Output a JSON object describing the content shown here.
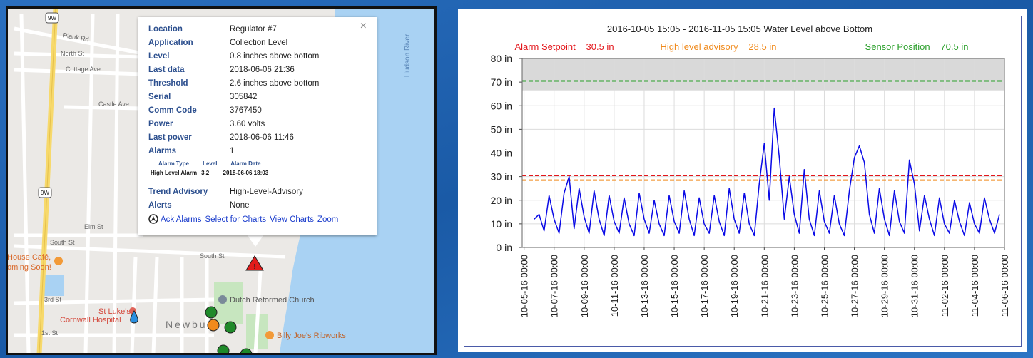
{
  "map": {
    "roads": [
      "Plank Rd",
      "North St",
      "Cottage Ave",
      "Castle Ave",
      "Elm St",
      "South St",
      "South St",
      "3rd St",
      "1st St"
    ],
    "shields": [
      "9W",
      "9W"
    ],
    "places": [
      "Dutch Reformed Church",
      "St Luke's",
      "Cornwall Hospital",
      "House Café,",
      "oming Soon!",
      "Billy Joe's Ribworks",
      "Hudson River",
      "Newbu"
    ]
  },
  "popup": {
    "close": "×",
    "fields": [
      {
        "label": "Location",
        "value": "Regulator #7"
      },
      {
        "label": "Application",
        "value": "Collection Level"
      },
      {
        "label": "Level",
        "value": "0.8 inches above bottom"
      },
      {
        "label": "Last data",
        "value": "2018-06-06 21:36"
      },
      {
        "label": "Threshold",
        "value": "2.6 inches above bottom"
      },
      {
        "label": "Serial",
        "value": "305842"
      },
      {
        "label": "Comm Code",
        "value": "3767450"
      },
      {
        "label": "Power",
        "value": "3.60 volts"
      },
      {
        "label": "Last power",
        "value": "2018-06-06 11:46"
      },
      {
        "label": "Alarms",
        "value": "1"
      }
    ],
    "alarm_table": {
      "headers": [
        "Alarm Type",
        "Level",
        "Alarm Date"
      ],
      "rows": [
        [
          "High Level Alarm",
          "3.2",
          "2018-06-06 18:03"
        ]
      ]
    },
    "more_fields": [
      {
        "label": "Trend Advisory",
        "value": "High-Level-Advisory"
      },
      {
        "label": "Alerts",
        "value": "None"
      }
    ],
    "links": [
      "Ack Alarms",
      "Select for Charts",
      "View Charts",
      "Zoom"
    ]
  },
  "chart_data": {
    "type": "line",
    "title": "2016-10-05 15:05 - 2016-11-05 15:05 Water Level above Bottom",
    "color": "#0a0ae6",
    "grid": true,
    "x": [
      "2016-10-05T16:00",
      "2016-10-06T00:00",
      "2016-10-06T08:00",
      "2016-10-06T16:00",
      "2016-10-07T00:00",
      "2016-10-07T08:00",
      "2016-10-07T16:00",
      "2016-10-08T00:00",
      "2016-10-08T08:00",
      "2016-10-08T16:00",
      "2016-10-09T00:00",
      "2016-10-09T08:00",
      "2016-10-09T16:00",
      "2016-10-10T00:00",
      "2016-10-10T08:00",
      "2016-10-10T16:00",
      "2016-10-11T00:00",
      "2016-10-11T08:00",
      "2016-10-11T16:00",
      "2016-10-12T00:00",
      "2016-10-12T08:00",
      "2016-10-12T16:00",
      "2016-10-13T00:00",
      "2016-10-13T08:00",
      "2016-10-13T16:00",
      "2016-10-14T00:00",
      "2016-10-14T08:00",
      "2016-10-14T16:00",
      "2016-10-15T00:00",
      "2016-10-15T08:00",
      "2016-10-15T16:00",
      "2016-10-16T00:00",
      "2016-10-16T08:00",
      "2016-10-16T16:00",
      "2016-10-17T00:00",
      "2016-10-17T08:00",
      "2016-10-17T16:00",
      "2016-10-18T00:00",
      "2016-10-18T08:00",
      "2016-10-18T16:00",
      "2016-10-19T00:00",
      "2016-10-19T08:00",
      "2016-10-19T16:00",
      "2016-10-20T00:00",
      "2016-10-20T08:00",
      "2016-10-20T16:00",
      "2016-10-21T00:00",
      "2016-10-21T08:00",
      "2016-10-21T16:00",
      "2016-10-22T00:00",
      "2016-10-22T08:00",
      "2016-10-22T16:00",
      "2016-10-23T00:00",
      "2016-10-23T08:00",
      "2016-10-23T16:00",
      "2016-10-24T00:00",
      "2016-10-24T08:00",
      "2016-10-24T16:00",
      "2016-10-25T00:00",
      "2016-10-25T08:00",
      "2016-10-25T16:00",
      "2016-10-26T00:00",
      "2016-10-26T08:00",
      "2016-10-26T16:00",
      "2016-10-27T00:00",
      "2016-10-27T08:00",
      "2016-10-27T16:00",
      "2016-10-28T00:00",
      "2016-10-28T08:00",
      "2016-10-28T16:00",
      "2016-10-29T00:00",
      "2016-10-29T08:00",
      "2016-10-29T16:00",
      "2016-10-30T00:00",
      "2016-10-30T08:00",
      "2016-10-30T16:00",
      "2016-10-31T00:00",
      "2016-10-31T08:00",
      "2016-10-31T16:00",
      "2016-11-01T00:00",
      "2016-11-01T08:00",
      "2016-11-01T16:00",
      "2016-11-02T00:00",
      "2016-11-02T08:00",
      "2016-11-02T16:00",
      "2016-11-03T00:00",
      "2016-11-03T08:00",
      "2016-11-03T16:00",
      "2016-11-04T00:00",
      "2016-11-04T08:00",
      "2016-11-04T16:00",
      "2016-11-05T00:00",
      "2016-11-05T08:00",
      "2016-11-05T16:00"
    ],
    "values": [
      12,
      14,
      7,
      22,
      12,
      6,
      23,
      30,
      8,
      25,
      13,
      6,
      24,
      12,
      5,
      22,
      11,
      6,
      21,
      10,
      5,
      23,
      12,
      6,
      20,
      10,
      5,
      22,
      11,
      6,
      24,
      12,
      5,
      21,
      10,
      6,
      22,
      11,
      5,
      25,
      12,
      6,
      23,
      10,
      5,
      27,
      44,
      20,
      59,
      38,
      12,
      30,
      14,
      6,
      33,
      12,
      5,
      24,
      11,
      6,
      22,
      10,
      5,
      24,
      38,
      43,
      36,
      14,
      6,
      25,
      12,
      5,
      24,
      11,
      6,
      37,
      27,
      7,
      22,
      12,
      5,
      21,
      10,
      6,
      20,
      11,
      5,
      19,
      10,
      6,
      21,
      12,
      6,
      14
    ],
    "xlim": [
      "2016-10-04T21:00",
      "2016-11-06T00:00"
    ],
    "xticks": [
      {
        "value": "2016-10-05T00:00",
        "label": "10-05-16 00:00"
      },
      {
        "value": "2016-10-07T00:00",
        "label": "10-07-16 00:00"
      },
      {
        "value": "2016-10-09T00:00",
        "label": "10-09-16 00:00"
      },
      {
        "value": "2016-10-11T00:00",
        "label": "10-11-16 00:00"
      },
      {
        "value": "2016-10-13T00:00",
        "label": "10-13-16 00:00"
      },
      {
        "value": "2016-10-15T00:00",
        "label": "10-15-16 00:00"
      },
      {
        "value": "2016-10-17T00:00",
        "label": "10-17-16 00:00"
      },
      {
        "value": "2016-10-19T00:00",
        "label": "10-19-16 00:00"
      },
      {
        "value": "2016-10-21T00:00",
        "label": "10-21-16 00:00"
      },
      {
        "value": "2016-10-23T00:00",
        "label": "10-23-16 00:00"
      },
      {
        "value": "2016-10-25T00:00",
        "label": "10-25-16 00:00"
      },
      {
        "value": "2016-10-27T00:00",
        "label": "10-27-16 00:00"
      },
      {
        "value": "2016-10-29T00:00",
        "label": "10-29-16 00:00"
      },
      {
        "value": "2016-10-31T00:00",
        "label": "10-31-16 00:00"
      },
      {
        "value": "2016-11-02T00:00",
        "label": "11-02-16 00:00"
      },
      {
        "value": "2016-11-04T00:00",
        "label": "11-04-16 00:00"
      },
      {
        "value": "2016-11-06T00:00",
        "label": "11-06-16 00:00"
      }
    ],
    "ylim": [
      0,
      80
    ],
    "yticks": [
      {
        "value": 0,
        "label": "0 in"
      },
      {
        "value": 10,
        "label": "10 in"
      },
      {
        "value": 20,
        "label": "20 in"
      },
      {
        "value": 30,
        "label": "30 in"
      },
      {
        "value": 40,
        "label": "40 in"
      },
      {
        "value": 50,
        "label": "50 in"
      },
      {
        "value": 60,
        "label": "60 in"
      },
      {
        "value": 70,
        "label": "70 in"
      },
      {
        "value": 80,
        "label": "80 in"
      }
    ],
    "band": {
      "from": 66.5,
      "to": 80,
      "color": "#d9d9d9"
    },
    "reference_lines": [
      {
        "label": "Alarm Setpoint = 30.5 in",
        "value": 30.5,
        "color": "#e3161b"
      },
      {
        "label": "High level advisory = 28.5 in",
        "value": 28.5,
        "color": "#f08a1c"
      },
      {
        "label": "Sensor Position = 70.5 in",
        "value": 70.5,
        "color": "#2ca02c"
      }
    ]
  }
}
